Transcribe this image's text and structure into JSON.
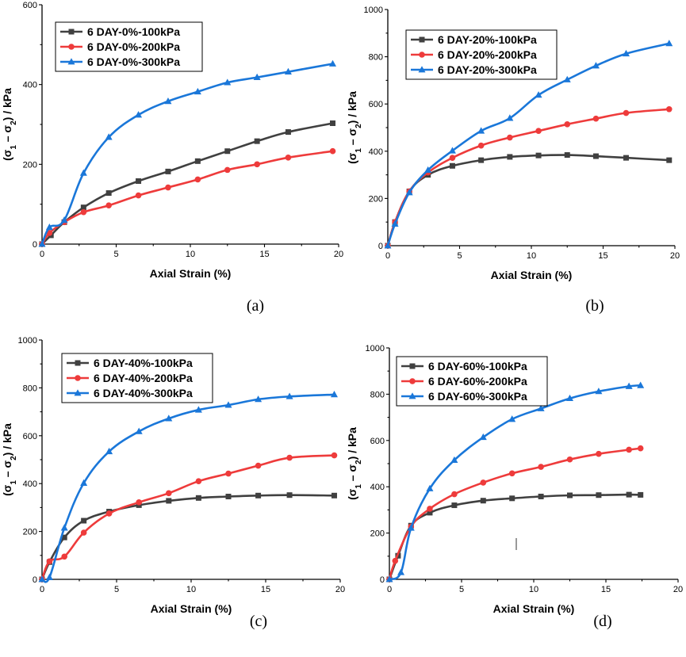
{
  "colors": {
    "s100": "#404040",
    "s200": "#ee3b3b",
    "s300": "#1a77d9"
  },
  "chart_data": [
    {
      "type": "line",
      "panel_label": "(a)",
      "xlabel": "Axial Strain (%)",
      "ylabel": "(σ1 – σ2) / kPa",
      "xlim": [
        0,
        20
      ],
      "ylim": [
        0,
        600
      ],
      "xticks": [
        0,
        5,
        10,
        15,
        20
      ],
      "yticks": [
        0,
        200,
        400,
        600
      ],
      "legend_position": "top-left",
      "series": [
        {
          "name": "6 DAY-0%-100kPa",
          "marker": "square",
          "x": [
            0,
            0.6,
            1.5,
            2.8,
            4.5,
            6.5,
            8.5,
            10.5,
            12.5,
            14.5,
            16.6,
            19.6
          ],
          "y": [
            0,
            22,
            55,
            92,
            128,
            158,
            182,
            208,
            233,
            258,
            281,
            303
          ]
        },
        {
          "name": "6 DAY-0%-200kPa",
          "marker": "circle",
          "x": [
            0,
            0.5,
            1.5,
            2.8,
            4.5,
            6.5,
            8.5,
            10.5,
            12.5,
            14.5,
            16.6,
            19.6
          ],
          "y": [
            0,
            28,
            55,
            80,
            97,
            122,
            142,
            162,
            186,
            200,
            217,
            233
          ]
        },
        {
          "name": "6 DAY-0%-300kPa",
          "marker": "triangle",
          "x": [
            0,
            0.5,
            1.5,
            2.8,
            4.5,
            6.5,
            8.5,
            10.5,
            12.5,
            14.5,
            16.6,
            19.6
          ],
          "y": [
            0,
            42,
            60,
            178,
            268,
            324,
            358,
            382,
            405,
            418,
            432,
            452
          ]
        }
      ]
    },
    {
      "type": "line",
      "panel_label": "(b)",
      "xlabel": "Axial Strain (%)",
      "ylabel": "(σ1 – σ2) / kPa",
      "xlim": [
        0,
        20
      ],
      "ylim": [
        0,
        1000
      ],
      "xticks": [
        0,
        5,
        10,
        15,
        20
      ],
      "yticks": [
        0,
        200,
        400,
        600,
        800,
        1000
      ],
      "legend_position": "top-left",
      "series": [
        {
          "name": "6 DAY-20%-100kPa",
          "marker": "square",
          "x": [
            0,
            0.5,
            1.5,
            2.8,
            4.5,
            6.5,
            8.5,
            10.5,
            12.5,
            14.5,
            16.6,
            19.6
          ],
          "y": [
            0,
            100,
            230,
            300,
            338,
            362,
            376,
            382,
            384,
            379,
            372,
            362
          ]
        },
        {
          "name": "6 DAY-20%-200kPa",
          "marker": "circle",
          "x": [
            0,
            0.5,
            1.5,
            2.8,
            4.5,
            6.5,
            8.5,
            10.5,
            12.5,
            14.5,
            16.6,
            19.6
          ],
          "y": [
            0,
            100,
            230,
            310,
            372,
            424,
            458,
            486,
            514,
            538,
            562,
            578
          ]
        },
        {
          "name": "6 DAY-20%-300kPa",
          "marker": "triangle",
          "x": [
            0,
            0.5,
            1.5,
            2.8,
            4.5,
            6.5,
            8.5,
            10.5,
            12.5,
            14.5,
            16.6,
            19.6
          ],
          "y": [
            0,
            92,
            225,
            320,
            402,
            486,
            540,
            638,
            703,
            762,
            813,
            856
          ]
        }
      ]
    },
    {
      "type": "line",
      "panel_label": "(c)",
      "xlabel": "Axial Strain (%)",
      "ylabel": "(σ1 – σ2) / kPa",
      "xlim": [
        0,
        20
      ],
      "ylim": [
        0,
        1000
      ],
      "xticks": [
        0,
        5,
        10,
        15,
        20
      ],
      "yticks": [
        0,
        200,
        400,
        600,
        800,
        1000
      ],
      "legend_position": "top-left",
      "series": [
        {
          "name": "6 DAY-40%-100kPa",
          "marker": "square",
          "x": [
            0,
            0.5,
            1.5,
            2.8,
            4.5,
            6.5,
            8.5,
            10.5,
            12.5,
            14.5,
            16.6,
            19.6
          ],
          "y": [
            0,
            72,
            175,
            245,
            283,
            310,
            328,
            340,
            346,
            350,
            352,
            350
          ]
        },
        {
          "name": "6 DAY-40%-200kPa",
          "marker": "circle",
          "x": [
            0,
            0.5,
            1.5,
            2.8,
            4.5,
            6.5,
            8.5,
            10.5,
            12.5,
            14.5,
            16.6,
            19.6
          ],
          "y": [
            0,
            75,
            95,
            195,
            275,
            322,
            360,
            410,
            442,
            475,
            508,
            518
          ]
        },
        {
          "name": "6 DAY-40%-300kPa",
          "marker": "triangle",
          "x": [
            0,
            0.5,
            1.5,
            2.8,
            4.5,
            6.5,
            8.5,
            10.5,
            12.5,
            14.5,
            16.6,
            19.6
          ],
          "y": [
            0,
            8,
            215,
            402,
            534,
            618,
            672,
            708,
            728,
            752,
            764,
            772
          ]
        }
      ]
    },
    {
      "type": "line",
      "panel_label": "(d)",
      "xlabel": "Axial Strain (%)",
      "ylabel": "(σ1 – σ2) / kPa",
      "xlim": [
        0,
        20
      ],
      "ylim": [
        0,
        1000
      ],
      "xticks": [
        0,
        5,
        10,
        15,
        20
      ],
      "yticks": [
        0,
        200,
        400,
        600,
        800,
        1000
      ],
      "legend_position": "top-left",
      "series": [
        {
          "name": "6 DAY-60%-100kPa",
          "marker": "square",
          "x": [
            0,
            0.6,
            1.5,
            2.8,
            4.5,
            6.5,
            8.5,
            10.5,
            12.5,
            14.5,
            16.6,
            17.4
          ],
          "y": [
            0,
            102,
            232,
            288,
            320,
            340,
            350,
            358,
            363,
            364,
            366,
            365
          ]
        },
        {
          "name": "6 DAY-60%-200kPa",
          "marker": "circle",
          "x": [
            0,
            0.4,
            1.5,
            2.8,
            4.5,
            6.5,
            8.5,
            10.5,
            12.5,
            14.5,
            16.6,
            17.4
          ],
          "y": [
            0,
            80,
            228,
            305,
            368,
            418,
            458,
            486,
            518,
            542,
            560,
            566
          ]
        },
        {
          "name": "6 DAY-60%-300kPa",
          "marker": "triangle",
          "x": [
            0,
            0.8,
            1.5,
            2.8,
            4.5,
            6.5,
            8.5,
            10.5,
            12.5,
            14.5,
            16.6,
            17.4
          ],
          "y": [
            0,
            30,
            222,
            392,
            515,
            614,
            692,
            738,
            782,
            812,
            834,
            838
          ]
        }
      ]
    }
  ]
}
